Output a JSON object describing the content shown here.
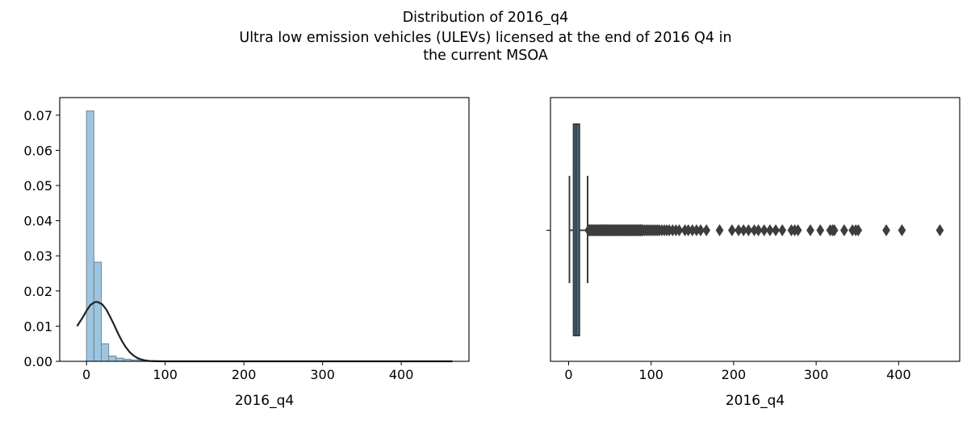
{
  "figure": {
    "title_line1": "Distribution of 2016_q4",
    "title_line2": "Ultra low emission vehicles (ULEVs) licensed at the end of 2016 Q4 in",
    "title_line3": "the current MSOA"
  },
  "chart_data": [
    {
      "type": "bar",
      "subtype": "histogram with kde",
      "xlabel": "2016_q4",
      "ylabel": "",
      "xlim": [
        -34,
        486
      ],
      "ylim": [
        0,
        0.075
      ],
      "xticks": [
        0,
        100,
        200,
        300,
        400
      ],
      "yticks": [
        0,
        0.01,
        0.02,
        0.03,
        0.04,
        0.05,
        0.06,
        0.07
      ],
      "ytick_labels": [
        "0.00",
        "0.01",
        "0.02",
        "0.03",
        "0.04",
        "0.05",
        "0.06",
        "0.07"
      ],
      "bin_width": 9.4,
      "bin_start": 0,
      "bar_color": "#9ec5e0",
      "edge_color": "#6e8797",
      "values": [
        0.0712,
        0.0282,
        0.005,
        0.0015,
        0.0009,
        0.0006,
        0.0004,
        0.00025,
        0.00015,
        0.0001,
        7e-05,
        5e-05,
        4e-05,
        3e-05,
        3e-05,
        2e-05,
        2e-05,
        2e-05,
        1e-05,
        1e-05,
        1e-05,
        1e-05,
        1e-05,
        1e-05,
        1e-05,
        1e-05,
        1e-05,
        1e-05,
        1e-05,
        1e-05,
        1e-05,
        1e-05,
        1e-05,
        1e-05,
        1e-05,
        1e-05,
        1e-05,
        1e-05,
        1e-05,
        1e-05,
        1e-05,
        1e-05,
        1e-05,
        1e-05,
        1e-05,
        1e-05,
        1e-05,
        1e-05,
        1e-05,
        1e-05
      ],
      "kde": {
        "color": "#222222",
        "x": [
          -12,
          -5,
          0,
          5,
          10,
          14,
          20,
          25,
          30,
          35,
          40,
          45,
          50,
          55,
          60,
          65,
          70,
          75,
          80,
          90,
          100,
          150,
          200,
          300,
          400,
          465
        ],
        "y": [
          0.01,
          0.0124,
          0.0144,
          0.016,
          0.0168,
          0.0169,
          0.0162,
          0.0148,
          0.0127,
          0.0104,
          0.008,
          0.0058,
          0.004,
          0.0026,
          0.0016,
          0.0009,
          0.0005,
          0.00025,
          0.0001,
          2e-05,
          0.0,
          0.0,
          0.0,
          0.0,
          0.0,
          0.0
        ]
      }
    },
    {
      "type": "boxplot",
      "orientation": "horizontal",
      "xlabel": "2016_q4",
      "xlim": [
        -22,
        474
      ],
      "xticks": [
        0,
        100,
        200,
        300,
        400
      ],
      "box_color": "#3a6d8f",
      "line_color": "#3d3d3d",
      "whisker_low": 1,
      "q1": 6,
      "median": 9,
      "q3": 13,
      "whisker_high": 23,
      "outliers": [
        24,
        25,
        26,
        27,
        28,
        29,
        30,
        31,
        32,
        33,
        34,
        35,
        36,
        37,
        38,
        39,
        40,
        41,
        42,
        43,
        44,
        45,
        46,
        47,
        48,
        49,
        50,
        51,
        52,
        53,
        54,
        55,
        56,
        57,
        58,
        59,
        60,
        61,
        62,
        63,
        64,
        65,
        66,
        67,
        68,
        69,
        70,
        71,
        72,
        73,
        74,
        75,
        76,
        77,
        78,
        79,
        80,
        81,
        82,
        83,
        84,
        85,
        86,
        87,
        88,
        89,
        90,
        92,
        94,
        96,
        98,
        100,
        102,
        104,
        106,
        108,
        110,
        113,
        116,
        119,
        122,
        126,
        130,
        134,
        141,
        145,
        150,
        155,
        160,
        167,
        183,
        198,
        206,
        212,
        218,
        225,
        230,
        237,
        244,
        251,
        259,
        270,
        274,
        278,
        293,
        305,
        317,
        320,
        322,
        334,
        344,
        348,
        351,
        385,
        404,
        450
      ]
    }
  ]
}
